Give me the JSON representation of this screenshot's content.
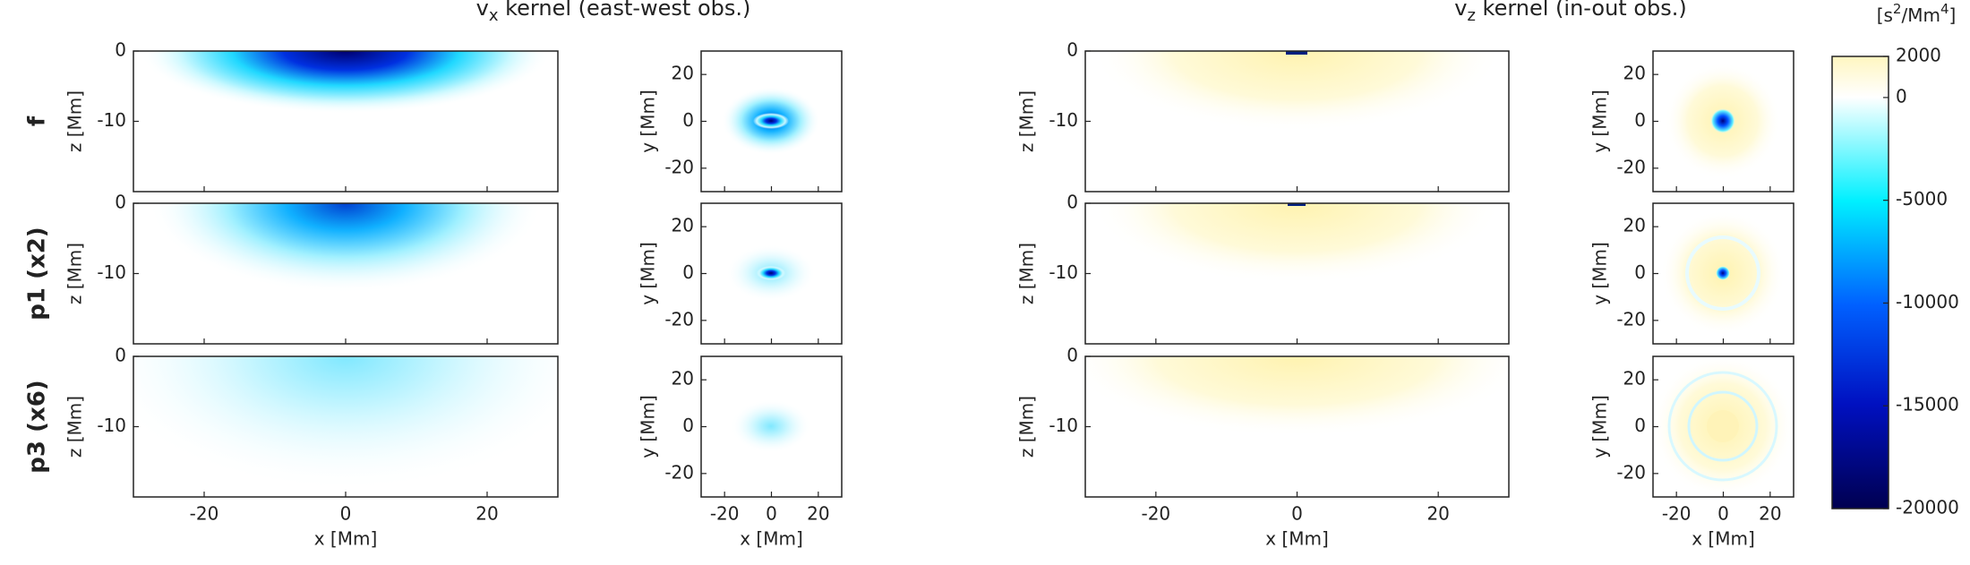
{
  "chart_data": {
    "type": "heatmap",
    "titles": [
      {
        "main": "v",
        "sub": "x",
        "rest": " kernel (east-west obs.)"
      },
      {
        "main": "v",
        "sub": "z",
        "rest": " kernel (in-out obs.)"
      }
    ],
    "rows": [
      "f",
      "p1 (x2)",
      "p3 (x6)"
    ],
    "depth": {
      "xlim": [
        -30,
        30
      ],
      "ylim": [
        -20,
        0
      ],
      "xticks": [
        -20,
        0,
        20
      ],
      "yticks": [
        0,
        -10
      ],
      "xlabel": "x [Mm]",
      "ylabel": "z [Mm]"
    },
    "surface": {
      "xlim": [
        -30,
        30
      ],
      "ylim": [
        -30,
        30
      ],
      "xticks": [
        -20,
        0,
        20
      ],
      "yticks": [
        20,
        0,
        -20
      ],
      "xlabel": "x [Mm]",
      "ylabel": "y [Mm]"
    },
    "colorbar": {
      "label": [
        "[s",
        "2",
        "/Mm",
        "4",
        "]"
      ],
      "ylim": [
        -20000,
        2000
      ],
      "yticks": [
        2000,
        0,
        -5000,
        -10000,
        -15000,
        -20000
      ]
    }
  }
}
